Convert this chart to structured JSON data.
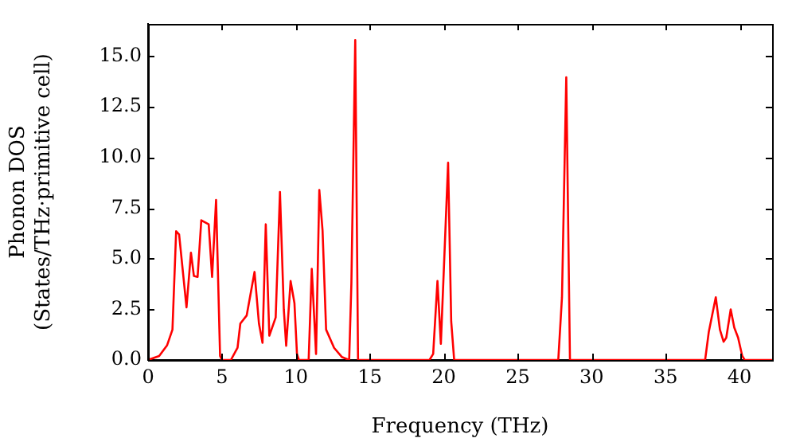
{
  "chart_data": {
    "type": "line",
    "xlabel": "Frequency (THz)",
    "ylabel": "Phonon DOS\n(States/THz·primitive cell)",
    "x": [
      0,
      0.75,
      1.29,
      1.65,
      1.9,
      2.1,
      2.6,
      2.9,
      3.1,
      3.35,
      3.6,
      4.1,
      4.33,
      4.6,
      4.87,
      5.0,
      5.6,
      6.05,
      6.24,
      6.67,
      7.2,
      7.5,
      7.74,
      7.96,
      8.2,
      8.63,
      8.92,
      9.18,
      9.34,
      9.64,
      9.9,
      10.07,
      10.2,
      10.86,
      11.07,
      11.36,
      11.58,
      11.8,
      12.04,
      12.58,
      13.1,
      13.6,
      13.75,
      14.01,
      14.2,
      19.03,
      19.28,
      19.57,
      19.8,
      20.29,
      20.5,
      20.7,
      27.74,
      27.99,
      28.28,
      28.53,
      37.67,
      37.92,
      38.39,
      38.67,
      38.92,
      39.1,
      39.4,
      39.64,
      39.9,
      40.18,
      40.35,
      42.2
    ],
    "series": [
      {
        "color": "#ff0000",
        "values": [
          0,
          0.2,
          0.73,
          1.5,
          6.36,
          6.2,
          2.6,
          5.3,
          4.15,
          4.1,
          6.9,
          6.7,
          4.1,
          7.9,
          0.2,
          0,
          0,
          0.6,
          1.8,
          2.2,
          4.35,
          1.8,
          0.85,
          6.7,
          1.2,
          2.1,
          8.3,
          2.5,
          0.7,
          3.9,
          2.8,
          0.3,
          0,
          0,
          4.5,
          0.3,
          8.4,
          6.4,
          1.5,
          0.6,
          0.15,
          0,
          3.8,
          15.8,
          0,
          0,
          0.3,
          3.9,
          0.8,
          9.74,
          1.9,
          0,
          0,
          3.1,
          13.96,
          0,
          0,
          1.4,
          3.1,
          1.5,
          0.9,
          1.1,
          2.5,
          1.6,
          1.1,
          0.2,
          0,
          0
        ]
      }
    ],
    "xlim": [
      0,
      42.2
    ],
    "xticks": [
      0,
      5,
      10,
      15,
      20,
      25,
      30,
      35,
      40
    ],
    "ylim": [
      0,
      16.6
    ],
    "yticks": [
      {
        "value": 0,
        "label": "0.0"
      },
      {
        "value": 2.5,
        "label": "2.5"
      },
      {
        "value": 5,
        "label": "5.0"
      },
      {
        "value": 7.5,
        "label": "7.5"
      },
      {
        "value": 10,
        "label": "10.0"
      },
      {
        "value": 12.5,
        "label": "12.5"
      },
      {
        "value": 15,
        "label": "15.0"
      }
    ],
    "grid": false,
    "legend": false,
    "marker": "none",
    "line_style": "solid"
  }
}
